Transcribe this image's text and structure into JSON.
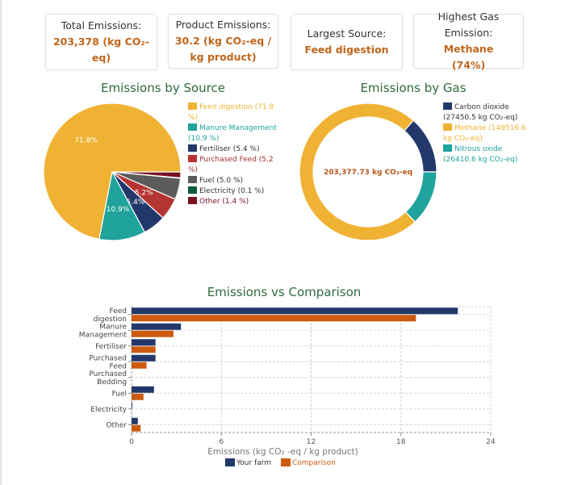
{
  "cards": [
    {
      "label": "Total Emissions:",
      "value": "203,378 (kg CO₂-eq)"
    },
    {
      "label": "Product Emissions:",
      "value": "30.2 (kg CO₂-eq / kg product)"
    },
    {
      "label": "Largest Source:",
      "value": "Feed digestion"
    },
    {
      "label": "Highest Gas Emission:",
      "value": "Methane (74%)"
    }
  ],
  "colors": {
    "title": "#2e6b3e",
    "value": "#c0661a",
    "your_farm": "#22386b",
    "comparison": "#cc5a10"
  },
  "chart_data": [
    {
      "type": "pie",
      "title": "Emissions by Source",
      "legend_position": "right",
      "slices": [
        {
          "label": "Feed digestion",
          "value": 71.8,
          "color": "#f0b233",
          "legend": "Feed digestion (71.8 %)",
          "show_label": true
        },
        {
          "label": "Manure Management",
          "value": 10.9,
          "color": "#1fa39c",
          "legend": "Manure Management (10.9 %)",
          "show_label": true
        },
        {
          "label": "Fertiliser",
          "value": 5.4,
          "color": "#22386b",
          "legend": "Fertiliser (5.4 %)",
          "show_label": true
        },
        {
          "label": "Purchased Feed",
          "value": 5.2,
          "color": "#b43532",
          "legend": "Purchased Feed (5.2 %)",
          "show_label": true
        },
        {
          "label": "Fuel",
          "value": 5.0,
          "color": "#5b5b5b",
          "legend": "Fuel (5.0 %)",
          "show_label": false
        },
        {
          "label": "Electricity",
          "value": 0.1,
          "color": "#0f5a3a",
          "legend": "Electricity (0.1 %)",
          "show_label": false
        },
        {
          "label": "Other",
          "value": 1.4,
          "color": "#7a1020",
          "legend": "Other (1.4 %)",
          "show_label": false
        }
      ]
    },
    {
      "type": "pie",
      "subtype": "donut",
      "title": "Emissions by Gas",
      "center_label": "203,377.73 kg CO₂-eq",
      "legend_position": "right",
      "slices": [
        {
          "label": "Carbon dioxide",
          "value": 27450.5,
          "color": "#22386b",
          "legend": "Carbon dioxide (27450.5 kg CO₂-eq)"
        },
        {
          "label": "Methane",
          "value": 149516.6,
          "color": "#f0b233",
          "legend": "Methane (149516.6 kg CO₂-eq)"
        },
        {
          "label": "Nitrous oxide",
          "value": 26410.6,
          "color": "#1fa39c",
          "legend": "Nitrous oxide (26410.6 kg CO₂-eq)"
        }
      ]
    },
    {
      "type": "bar",
      "orientation": "horizontal",
      "title": "Emissions vs Comparison",
      "xlabel": "Emissions (kg CO₂ -eq / kg product)",
      "ylabel": "",
      "xlim": [
        0,
        24
      ],
      "xticks": [
        0,
        6,
        12,
        18,
        24
      ],
      "grid": true,
      "legend_position": "bottom",
      "categories": [
        "Feed digestion",
        "Manure Management",
        "Fertiliser",
        "Purchased Feed",
        "Purchased Bedding",
        "Fuel",
        "Electricity",
        "Other"
      ],
      "category_lines": [
        [
          "Feed",
          "digestion"
        ],
        [
          "Manure",
          "Management"
        ],
        [
          "Fertiliser"
        ],
        [
          "Purchased",
          "Feed"
        ],
        [
          "Purchased",
          "Bedding"
        ],
        [
          "Fuel"
        ],
        [
          "Electricity"
        ],
        [
          "Other"
        ]
      ],
      "series": [
        {
          "name": "Your farm",
          "color": "#22386b",
          "values": [
            21.8,
            3.3,
            1.6,
            1.6,
            0.0,
            1.5,
            0.05,
            0.42
          ]
        },
        {
          "name": "Comparison",
          "color": "#cc5a10",
          "values": [
            19.0,
            2.8,
            1.6,
            1.0,
            0.0,
            0.8,
            0.01,
            0.6
          ]
        }
      ]
    }
  ]
}
